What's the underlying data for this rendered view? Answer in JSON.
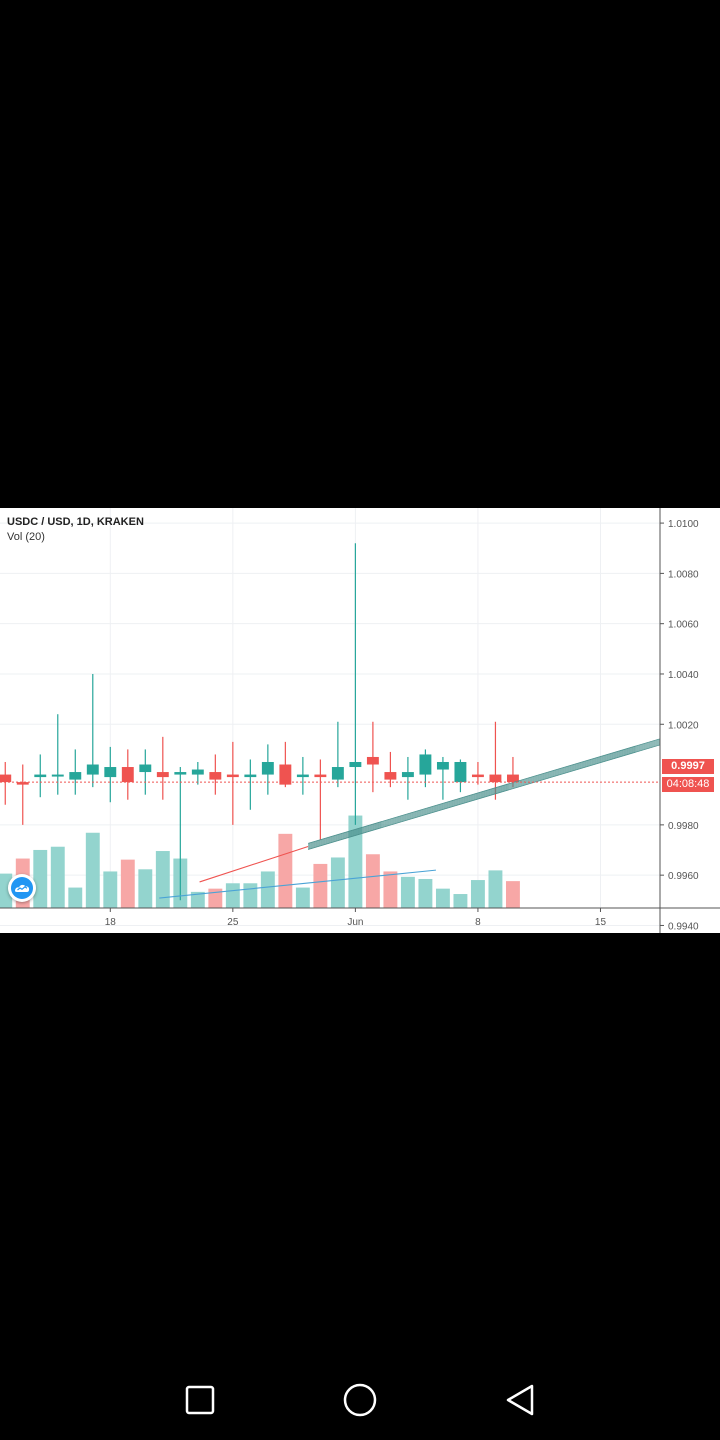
{
  "header": {
    "symbol_line": "USDC / USD, 1D, KRAKEN",
    "volume_line": "Vol (20)"
  },
  "price_badge": {
    "value": "0.9997",
    "countdown": "04:08:48"
  },
  "colors": {
    "up": "#26a69a",
    "down": "#ef5350",
    "vol_up": "#93d4ce",
    "vol_down": "#f7a7a6",
    "grid": "#eef0f3",
    "axis_text": "#555555"
  },
  "icons": {
    "logo": "tradingview-cloud-icon",
    "nav": [
      "square-icon",
      "circle-icon",
      "triangle-back-icon"
    ]
  },
  "chart_data": {
    "type": "candlestick",
    "title": "USDC / USD, 1D, KRAKEN",
    "y_ticks": [
      "1.0100",
      "1.0080",
      "1.0060",
      "1.0040",
      "1.0020",
      "0.9980",
      "0.9960",
      "0.9940"
    ],
    "y_tick_values": [
      1.01,
      1.008,
      1.006,
      1.004,
      1.002,
      0.998,
      0.996,
      0.994
    ],
    "ylim": [
      0.9937,
      1.0106
    ],
    "x_ticks": [
      "18",
      "25",
      "Jun",
      "8",
      "15"
    ],
    "x_tick_days": [
      17,
      24,
      31,
      38,
      45
    ],
    "day_range": [
      10.7,
      48.4
    ],
    "last_price": 0.9997,
    "candles": [
      {
        "day": 11,
        "open": 1.0,
        "high": 1.0005,
        "low": 0.9988,
        "close": 0.9997
      },
      {
        "day": 12,
        "open": 0.9997,
        "high": 1.0004,
        "low": 0.998,
        "close": 0.9996
      },
      {
        "day": 13,
        "open": 0.9999,
        "high": 1.0008,
        "low": 0.9991,
        "close": 1.0
      },
      {
        "day": 14,
        "open": 1.0,
        "high": 1.0024,
        "low": 0.9992,
        "close": 1.0
      },
      {
        "day": 15,
        "open": 0.9998,
        "high": 1.001,
        "low": 0.9992,
        "close": 1.0001
      },
      {
        "day": 16,
        "open": 1.0,
        "high": 1.004,
        "low": 0.9995,
        "close": 1.0004
      },
      {
        "day": 17,
        "open": 0.9999,
        "high": 1.0011,
        "low": 0.9989,
        "close": 1.0003
      },
      {
        "day": 18,
        "open": 1.0003,
        "high": 1.001,
        "low": 0.999,
        "close": 0.9997
      },
      {
        "day": 19,
        "open": 1.0001,
        "high": 1.001,
        "low": 0.9992,
        "close": 1.0004
      },
      {
        "day": 20,
        "open": 1.0001,
        "high": 1.0015,
        "low": 0.999,
        "close": 0.9999
      },
      {
        "day": 21,
        "open": 1.0,
        "high": 1.0003,
        "low": 0.995,
        "close": 1.0001
      },
      {
        "day": 22,
        "open": 1.0,
        "high": 1.0005,
        "low": 0.9996,
        "close": 1.0002
      },
      {
        "day": 23,
        "open": 1.0001,
        "high": 1.0008,
        "low": 0.9992,
        "close": 0.9998
      },
      {
        "day": 24,
        "open": 1.0,
        "high": 1.0013,
        "low": 0.998,
        "close": 0.9999
      },
      {
        "day": 25,
        "open": 0.9999,
        "high": 1.0006,
        "low": 0.9986,
        "close": 1.0
      },
      {
        "day": 26,
        "open": 1.0,
        "high": 1.0012,
        "low": 0.9992,
        "close": 1.0005
      },
      {
        "day": 27,
        "open": 1.0004,
        "high": 1.0013,
        "low": 0.9995,
        "close": 0.9996
      },
      {
        "day": 28,
        "open": 0.9999,
        "high": 1.0007,
        "low": 0.9992,
        "close": 1.0
      },
      {
        "day": 29,
        "open": 1.0,
        "high": 1.0006,
        "low": 0.9974,
        "close": 0.9999
      },
      {
        "day": 30,
        "open": 0.9998,
        "high": 1.0021,
        "low": 0.9995,
        "close": 1.0003
      },
      {
        "day": 31,
        "open": 1.0003,
        "high": 1.0092,
        "low": 0.998,
        "close": 1.0005
      },
      {
        "day": 32,
        "open": 1.0007,
        "high": 1.0021,
        "low": 0.9993,
        "close": 1.0004
      },
      {
        "day": 33,
        "open": 1.0001,
        "high": 1.0009,
        "low": 0.9995,
        "close": 0.9998
      },
      {
        "day": 34,
        "open": 0.9999,
        "high": 1.0007,
        "low": 0.999,
        "close": 1.0001
      },
      {
        "day": 35,
        "open": 1.0,
        "high": 1.001,
        "low": 0.9995,
        "close": 1.0008
      },
      {
        "day": 36,
        "open": 1.0002,
        "high": 1.0007,
        "low": 0.999,
        "close": 1.0005
      },
      {
        "day": 37,
        "open": 0.9997,
        "high": 1.0006,
        "low": 0.9993,
        "close": 1.0005
      },
      {
        "day": 38,
        "open": 1.0,
        "high": 1.0005,
        "low": 0.9996,
        "close": 0.9999
      },
      {
        "day": 39,
        "open": 1.0,
        "high": 1.0021,
        "low": 0.999,
        "close": 0.9997
      },
      {
        "day": 40,
        "open": 1.0,
        "high": 1.0007,
        "low": 0.9995,
        "close": 0.9997
      }
    ],
    "volume_max": 8,
    "volume": [
      {
        "day": 11,
        "value": 3.2,
        "dir": "up"
      },
      {
        "day": 12,
        "value": 4.6,
        "dir": "down"
      },
      {
        "day": 13,
        "value": 5.4,
        "dir": "up"
      },
      {
        "day": 14,
        "value": 5.7,
        "dir": "up"
      },
      {
        "day": 15,
        "value": 1.9,
        "dir": "up"
      },
      {
        "day": 16,
        "value": 7.0,
        "dir": "up"
      },
      {
        "day": 17,
        "value": 3.4,
        "dir": "up"
      },
      {
        "day": 18,
        "value": 4.5,
        "dir": "down"
      },
      {
        "day": 19,
        "value": 3.6,
        "dir": "up"
      },
      {
        "day": 20,
        "value": 5.3,
        "dir": "up"
      },
      {
        "day": 21,
        "value": 4.6,
        "dir": "up"
      },
      {
        "day": 22,
        "value": 1.5,
        "dir": "up"
      },
      {
        "day": 23,
        "value": 1.8,
        "dir": "down"
      },
      {
        "day": 24,
        "value": 2.3,
        "dir": "up"
      },
      {
        "day": 25,
        "value": 2.3,
        "dir": "up"
      },
      {
        "day": 26,
        "value": 3.4,
        "dir": "up"
      },
      {
        "day": 27,
        "value": 6.9,
        "dir": "down"
      },
      {
        "day": 28,
        "value": 1.9,
        "dir": "up"
      },
      {
        "day": 29,
        "value": 4.1,
        "dir": "down"
      },
      {
        "day": 30,
        "value": 4.7,
        "dir": "up"
      },
      {
        "day": 31,
        "value": 8.6,
        "dir": "up"
      },
      {
        "day": 32,
        "value": 5.0,
        "dir": "down"
      },
      {
        "day": 33,
        "value": 3.4,
        "dir": "down"
      },
      {
        "day": 34,
        "value": 2.9,
        "dir": "up"
      },
      {
        "day": 35,
        "value": 2.7,
        "dir": "up"
      },
      {
        "day": 36,
        "value": 1.8,
        "dir": "up"
      },
      {
        "day": 37,
        "value": 1.3,
        "dir": "up"
      },
      {
        "day": 38,
        "value": 2.6,
        "dir": "up"
      },
      {
        "day": 39,
        "value": 3.5,
        "dir": "up"
      },
      {
        "day": 40,
        "value": 2.5,
        "dir": "down"
      }
    ],
    "drawings": [
      {
        "kind": "trend_channel",
        "color": "#4a8f8c",
        "start": {
          "day": 28.3,
          "price": 0.99714
        },
        "end": {
          "day": 48.4,
          "price": 1.0013
        }
      },
      {
        "kind": "trend_line",
        "color": "#ef5350",
        "start": {
          "day": 22.1,
          "price": 0.99573
        },
        "end": {
          "day": 28.3,
          "price": 0.99714
        }
      },
      {
        "kind": "trend_line",
        "color": "#4aa3d6",
        "start": {
          "day": 19.8,
          "price": 0.99509
        },
        "end": {
          "day": 35.6,
          "price": 0.9962
        }
      }
    ]
  }
}
